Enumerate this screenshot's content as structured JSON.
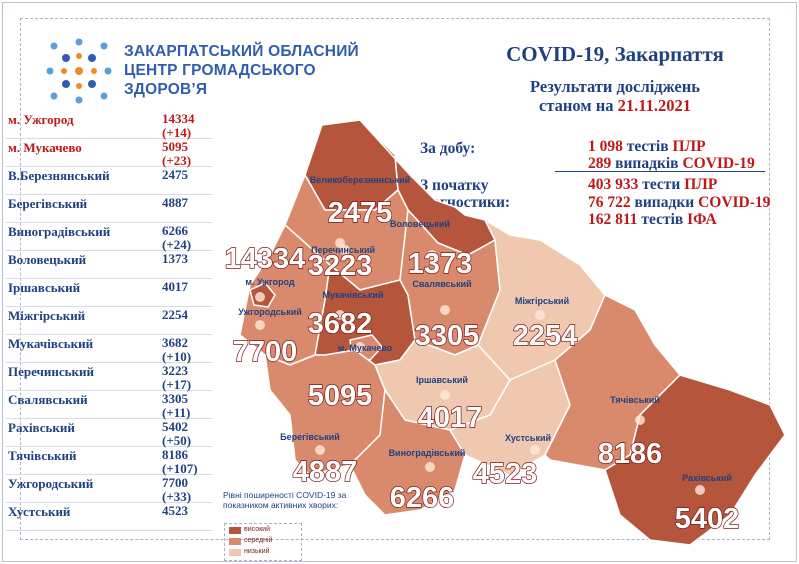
{
  "header": {
    "org_lines": [
      "ЗАКАРПАТСЬКИЙ ОБЛАСНИЙ",
      "ЦЕНТР ГРОМАДСЬКОГО",
      "ЗДОРОВ’Я"
    ],
    "title": "COVID-19, Закарпаття",
    "subtitle_line1": "Результати досліджень",
    "subtitle_prefix": "станом на",
    "date": "21.11.2021"
  },
  "colors": {
    "high": "#b5553c",
    "medium": "#d98a6c",
    "low": "#f0c8b0",
    "accent_red": "#c01818",
    "brand_blue": "#1f4180"
  },
  "table": [
    {
      "name": "м. Ужгород",
      "total": "14334",
      "delta": "(+14)",
      "city": true
    },
    {
      "name": "м. Мукачево",
      "total": "5095",
      "delta": "(+23)",
      "city": true
    },
    {
      "name": "В.Березнянський",
      "total": "2475",
      "delta": ""
    },
    {
      "name": "Берегівський",
      "total": "4887",
      "delta": ""
    },
    {
      "name": "Виноградівський",
      "total": "6266",
      "delta": "(+24)"
    },
    {
      "name": "Воловецький",
      "total": "1373",
      "delta": ""
    },
    {
      "name": "Іршавський",
      "total": "4017",
      "delta": ""
    },
    {
      "name": "Міжгірський",
      "total": "2254",
      "delta": ""
    },
    {
      "name": "Мукачівський",
      "total": "3682",
      "delta": "(+10)"
    },
    {
      "name": "Перечинський",
      "total": "3223",
      "delta": "(+17)"
    },
    {
      "name": "Свалявський",
      "total": "3305",
      "delta": "(+11)"
    },
    {
      "name": "Рахівський",
      "total": "5402",
      "delta": "(+50)"
    },
    {
      "name": "Тячівський",
      "total": "8186",
      "delta": "(+107)"
    },
    {
      "name": "Ужгородський",
      "total": "7700",
      "delta": "(+33)"
    },
    {
      "name": "Хустський",
      "total": "4523",
      "delta": ""
    }
  ],
  "stats": {
    "day_label": "За добу:",
    "day_tests_num": "1 098",
    "day_tests_text": "тестів",
    "day_tests_type": "ПЛР",
    "day_cases_num": "289",
    "day_cases_text": "випадків",
    "day_cases_type": "COVID-19",
    "since_label_1": "З початку",
    "since_label_2": "діагностики:",
    "total_tests_num": "403 933",
    "total_tests_text": "тести",
    "total_tests_type": "ПЛР",
    "total_cases_num": "76 722",
    "total_cases_text": "випадки",
    "total_cases_type": "COVID-19",
    "ifa_num": "162 811",
    "ifa_text": "тестів",
    "ifa_type": "ІФА"
  },
  "map": {
    "districts": [
      {
        "label": "Великоберезнянський",
        "value": "2475",
        "level": "high"
      },
      {
        "label": "Перечинський",
        "value": "3223",
        "level": "medium"
      },
      {
        "label": "Воловецький",
        "value": "1373",
        "level": "high"
      },
      {
        "label": "м. Ужгород",
        "value": "14334",
        "level": "high"
      },
      {
        "label": "Ужгородський",
        "value": "7700",
        "level": "medium"
      },
      {
        "label": "Мукачівський",
        "value": "3682",
        "level": "high"
      },
      {
        "label": "м. Мукачево",
        "value": "5095",
        "level": "medium"
      },
      {
        "label": "Свалявський",
        "value": "3305",
        "level": "medium"
      },
      {
        "label": "Міжгірський",
        "value": "2254",
        "level": "low"
      },
      {
        "label": "Іршавський",
        "value": "4017",
        "level": "low"
      },
      {
        "label": "Берегівський",
        "value": "4887",
        "level": "medium"
      },
      {
        "label": "Виноградівський",
        "value": "6266",
        "level": "medium"
      },
      {
        "label": "Хустський",
        "value": "4523",
        "level": "low"
      },
      {
        "label": "Тячівський",
        "value": "8186",
        "level": "medium"
      },
      {
        "label": "Рахівський",
        "value": "5402",
        "level": "high"
      }
    ]
  },
  "legend": {
    "title": "Рівні поширеності COVID-19 за показником активних хворих:",
    "items": [
      {
        "label": "високий",
        "level": "high"
      },
      {
        "label": "середній",
        "level": "medium"
      },
      {
        "label": "низький",
        "level": "low"
      }
    ]
  }
}
